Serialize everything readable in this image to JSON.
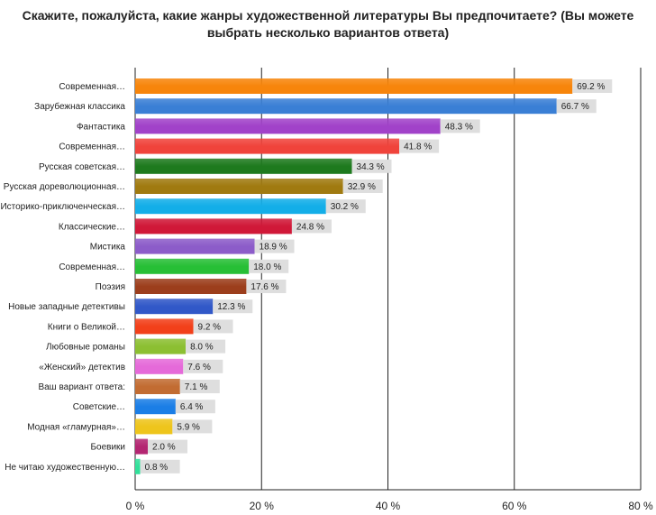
{
  "chart_data": {
    "type": "bar",
    "orientation": "horizontal",
    "title": "Скажите, пожалуйста, какие жанры художественной литературы Вы предпочитаете? (Вы можете выбрать несколько вариантов ответа)",
    "categories": [
      "Современная…",
      "Зарубежная классика",
      "Фантастика",
      "Современная…",
      "Русская советская…",
      "Русская дореволюционная…",
      "Историко-приключенческая…",
      "Классические…",
      "Мистика",
      "Современная…",
      "Поэзия",
      "Новые западные детективы",
      "Книги о Великой…",
      "Любовные романы",
      "«Женский» детектив",
      "Ваш вариант ответа:",
      "Советские…",
      "Модная «гламурная»…",
      "Боевики",
      "Не читаю художественную…"
    ],
    "values": [
      69.2,
      66.7,
      48.3,
      41.8,
      34.3,
      32.9,
      30.2,
      24.8,
      18.9,
      18.0,
      17.6,
      12.3,
      9.2,
      8.0,
      7.6,
      7.1,
      6.4,
      5.9,
      2.0,
      0.8
    ],
    "value_labels": [
      "69.2 %",
      "66.7 %",
      "48.3 %",
      "41.8 %",
      "34.3 %",
      "32.9 %",
      "30.2 %",
      "24.8 %",
      "18.9 %",
      "18.0 %",
      "17.6 %",
      "12.3 %",
      "9.2 %",
      "8.0 %",
      "7.6 %",
      "7.1 %",
      "6.4 %",
      "5.9 %",
      "2.0 %",
      "0.8 %"
    ],
    "colors": [
      "#f7850b",
      "#3a7fd5",
      "#a142c9",
      "#f0433b",
      "#1e7a1e",
      "#a07a10",
      "#13aee8",
      "#d01838",
      "#8c5cc9",
      "#27bf36",
      "#9c3e1c",
      "#3158c8",
      "#f2401a",
      "#8cbf32",
      "#e56ad9",
      "#c26c32",
      "#1b7ee6",
      "#eec51c",
      "#b32671",
      "#31e09a"
    ],
    "xlim": [
      0,
      80
    ],
    "xticks": [
      0,
      20,
      40,
      60,
      80
    ],
    "xtick_labels": [
      "0 %",
      "20 %",
      "40 %",
      "60 %",
      "80 %"
    ],
    "xlabel": "",
    "ylabel": "",
    "grid": "vertical"
  }
}
